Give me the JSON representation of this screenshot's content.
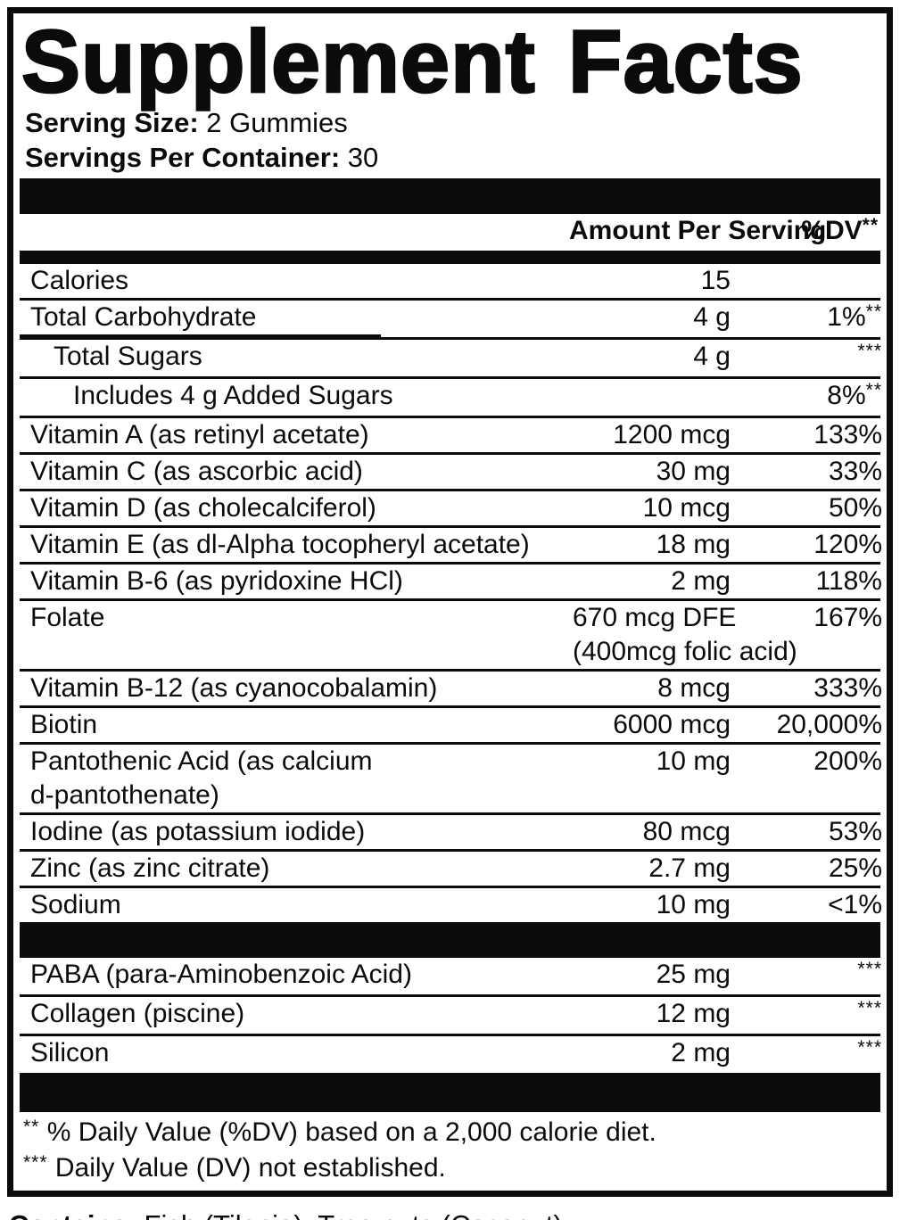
{
  "title": "Supplement Facts",
  "serving": {
    "size_label": "Serving Size:",
    "size_value": " 2 Gummies",
    "per_container_label": "Servings Per Container:",
    "per_container_value": " 30"
  },
  "header": {
    "amount": "Amount Per Serving",
    "dv": "%DV",
    "dv_mark": "**"
  },
  "rows": [
    {
      "name": "Calories",
      "amount": "15",
      "dv": "",
      "dv_mark": "",
      "indent": 0
    },
    {
      "name": "Total Carbohydrate",
      "amount": "4 g",
      "dv": "1%",
      "dv_mark": "**",
      "indent": 0,
      "divider_accent": true
    },
    {
      "name": "Total Sugars",
      "amount": "4 g",
      "dv": "",
      "dv_mark": "***",
      "indent": 1
    },
    {
      "name": "Includes 4 g Added Sugars",
      "amount": "",
      "dv": "8%",
      "dv_mark": "**",
      "indent": 2
    },
    {
      "name": "Vitamin A (as retinyl acetate)",
      "amount": "1200 mcg",
      "dv": "133%",
      "dv_mark": "",
      "indent": 0
    },
    {
      "name": "Vitamin C (as ascorbic acid)",
      "amount": "30 mg",
      "dv": "33%",
      "dv_mark": "",
      "indent": 0
    },
    {
      "name": "Vitamin D (as cholecalciferol)",
      "amount": "10 mcg",
      "dv": "50%",
      "dv_mark": "",
      "indent": 0
    },
    {
      "name": "Vitamin E (as dl-Alpha tocopheryl acetate)",
      "amount": "18 mg",
      "dv": "120%",
      "dv_mark": "",
      "indent": 0
    },
    {
      "name": "Vitamin B-6 (as pyridoxine HCl)",
      "amount": "2 mg",
      "dv": "118%",
      "dv_mark": "",
      "indent": 0
    },
    {
      "name": "Folate",
      "amount": "670 mcg DFE",
      "amount2": "(400mcg folic acid)",
      "dv": "167%",
      "dv_mark": "",
      "indent": 0
    },
    {
      "name": "Vitamin B-12 (as cyanocobalamin)",
      "amount": "8 mcg",
      "dv": "333%",
      "dv_mark": "",
      "indent": 0
    },
    {
      "name": "Biotin",
      "amount": "6000 mcg",
      "dv": "20,000%",
      "dv_mark": "",
      "indent": 0
    },
    {
      "name": "Pantothenic Acid (as calcium",
      "name2": "d-pantothenate)",
      "amount": "10 mg",
      "dv": "200%",
      "dv_mark": "",
      "indent": 0
    },
    {
      "name": "Iodine (as potassium iodide)",
      "amount": "80 mcg",
      "dv": "53%",
      "dv_mark": "",
      "indent": 0
    },
    {
      "name": "Zinc (as zinc citrate)",
      "amount": "2.7 mg",
      "dv": "25%",
      "dv_mark": "",
      "indent": 0
    },
    {
      "name": "Sodium",
      "amount": "10 mg",
      "dv": "<1%",
      "dv_mark": "",
      "indent": 0
    }
  ],
  "extra_rows": [
    {
      "name": "PABA (para-Aminobenzoic Acid)",
      "amount": "25 mg",
      "dv": "",
      "dv_mark": "***",
      "indent": 0
    },
    {
      "name": "Collagen (piscine)",
      "amount": "12 mg",
      "dv": "",
      "dv_mark": "***",
      "indent": 0
    },
    {
      "name": "Silicon",
      "amount": "2 mg",
      "dv": "",
      "dv_mark": "***",
      "indent": 0
    }
  ],
  "footnotes": [
    {
      "mark": "**",
      "text": " % Daily Value (%DV) based on a 2,000 calorie diet."
    },
    {
      "mark": "***",
      "text": " Daily Value (DV) not established."
    }
  ],
  "contains": {
    "label": "Contains:",
    "value": " Fish (Tilapia), Tree nuts (Coconut)"
  },
  "colors": {
    "ink": "#0b0b0b",
    "paper": "#ffffff"
  }
}
